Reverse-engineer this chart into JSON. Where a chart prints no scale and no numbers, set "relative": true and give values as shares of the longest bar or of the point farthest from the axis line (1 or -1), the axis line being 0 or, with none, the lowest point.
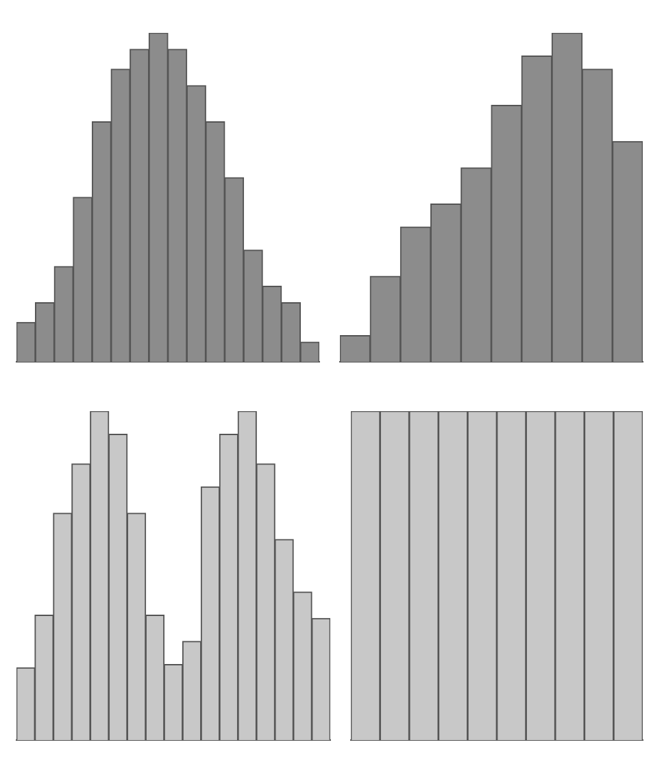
{
  "chart_data": [
    {
      "type": "bar",
      "relative": true,
      "color": "#8c8c8c",
      "categories": [
        null,
        null,
        null,
        null,
        null,
        null,
        null,
        null,
        null,
        null,
        null,
        null,
        null,
        null,
        null,
        null
      ],
      "values": [
        0.12,
        0.18,
        0.29,
        0.5,
        0.73,
        0.89,
        0.95,
        1,
        0.95,
        0.84,
        0.73,
        0.56,
        0.34,
        0.23,
        0.18,
        0.06
      ]
    },
    {
      "type": "bar",
      "relative": true,
      "color": "#8c8c8c",
      "categories": [
        null,
        null,
        null,
        null,
        null,
        null,
        null,
        null,
        null,
        null
      ],
      "values": [
        0.08,
        0.26,
        0.41,
        0.48,
        0.59,
        0.78,
        0.93,
        1,
        0.89,
        0.67
      ]
    },
    {
      "type": "bar",
      "relative": true,
      "color": "#c8c8c8",
      "categories": [
        null,
        null,
        null,
        null,
        null,
        null,
        null,
        null,
        null,
        null,
        null,
        null,
        null,
        null,
        null,
        null,
        null
      ],
      "values": [
        0.22,
        0.38,
        0.69,
        0.84,
        1,
        0.93,
        0.69,
        0.38,
        0.23,
        0.3,
        0.77,
        0.93,
        1,
        0.84,
        0.61,
        0.45,
        0.37
      ]
    },
    {
      "type": "bar",
      "relative": true,
      "color": "#c8c8c8",
      "categories": [
        null,
        null,
        null,
        null,
        null,
        null,
        null,
        null,
        null,
        null
      ],
      "values": [
        1,
        1,
        1,
        1,
        1,
        1,
        1,
        1,
        1,
        1
      ]
    }
  ]
}
